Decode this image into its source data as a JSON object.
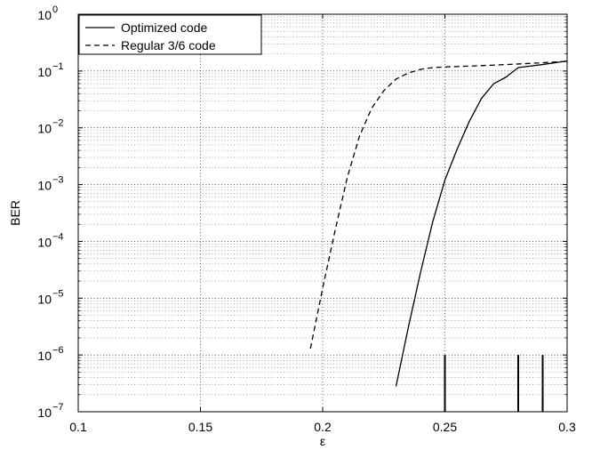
{
  "chart_data": {
    "type": "line",
    "title": "",
    "xlabel": "ε",
    "ylabel": "BER",
    "xlim": [
      0.1,
      0.3
    ],
    "ylim": [
      1e-07,
      1
    ],
    "y_scale": "log",
    "grid": true,
    "legend_position": "top-left",
    "x_ticks": [
      {
        "value": 0.1,
        "label": "0.1"
      },
      {
        "value": 0.15,
        "label": "0.15"
      },
      {
        "value": 0.2,
        "label": "0.2"
      },
      {
        "value": 0.25,
        "label": "0.25"
      },
      {
        "value": 0.3,
        "label": "0.3"
      }
    ],
    "y_ticks": [
      {
        "value": 1e-07,
        "base": "10",
        "exp": "−7"
      },
      {
        "value": 1e-06,
        "base": "10",
        "exp": "−6"
      },
      {
        "value": 1e-05,
        "base": "10",
        "exp": "−5"
      },
      {
        "value": 0.0001,
        "base": "10",
        "exp": "−4"
      },
      {
        "value": 0.001,
        "base": "10",
        "exp": "−3"
      },
      {
        "value": 0.01,
        "base": "10",
        "exp": "−2"
      },
      {
        "value": 0.1,
        "base": "10",
        "exp": "−1"
      },
      {
        "value": 1,
        "base": "10",
        "exp": "0"
      }
    ],
    "series": [
      {
        "name": "Optimized code",
        "style": "solid",
        "x": [
          0.23,
          0.235,
          0.24,
          0.245,
          0.25,
          0.255,
          0.26,
          0.265,
          0.27,
          0.275,
          0.28,
          0.29,
          0.3
        ],
        "y": [
          2.8e-07,
          3e-06,
          2.8e-05,
          0.00022,
          0.0012,
          0.0042,
          0.013,
          0.033,
          0.06,
          0.078,
          0.115,
          0.13,
          0.15
        ]
      },
      {
        "name": "Regular 3/6 code",
        "style": "dashed",
        "x": [
          0.195,
          0.2,
          0.205,
          0.21,
          0.215,
          0.22,
          0.225,
          0.23,
          0.235,
          0.24,
          0.245,
          0.25,
          0.26,
          0.27,
          0.28,
          0.29,
          0.3
        ],
        "y": [
          1.3e-06,
          1.5e-05,
          0.00015,
          0.0013,
          0.007,
          0.022,
          0.045,
          0.072,
          0.092,
          0.107,
          0.115,
          0.118,
          0.122,
          0.127,
          0.133,
          0.14,
          0.148
        ]
      }
    ],
    "markers": [
      {
        "x": 0.25,
        "y_top": 1e-06
      },
      {
        "x": 0.28,
        "y_top": 1e-06
      },
      {
        "x": 0.29,
        "y_top": 1e-06
      }
    ]
  }
}
